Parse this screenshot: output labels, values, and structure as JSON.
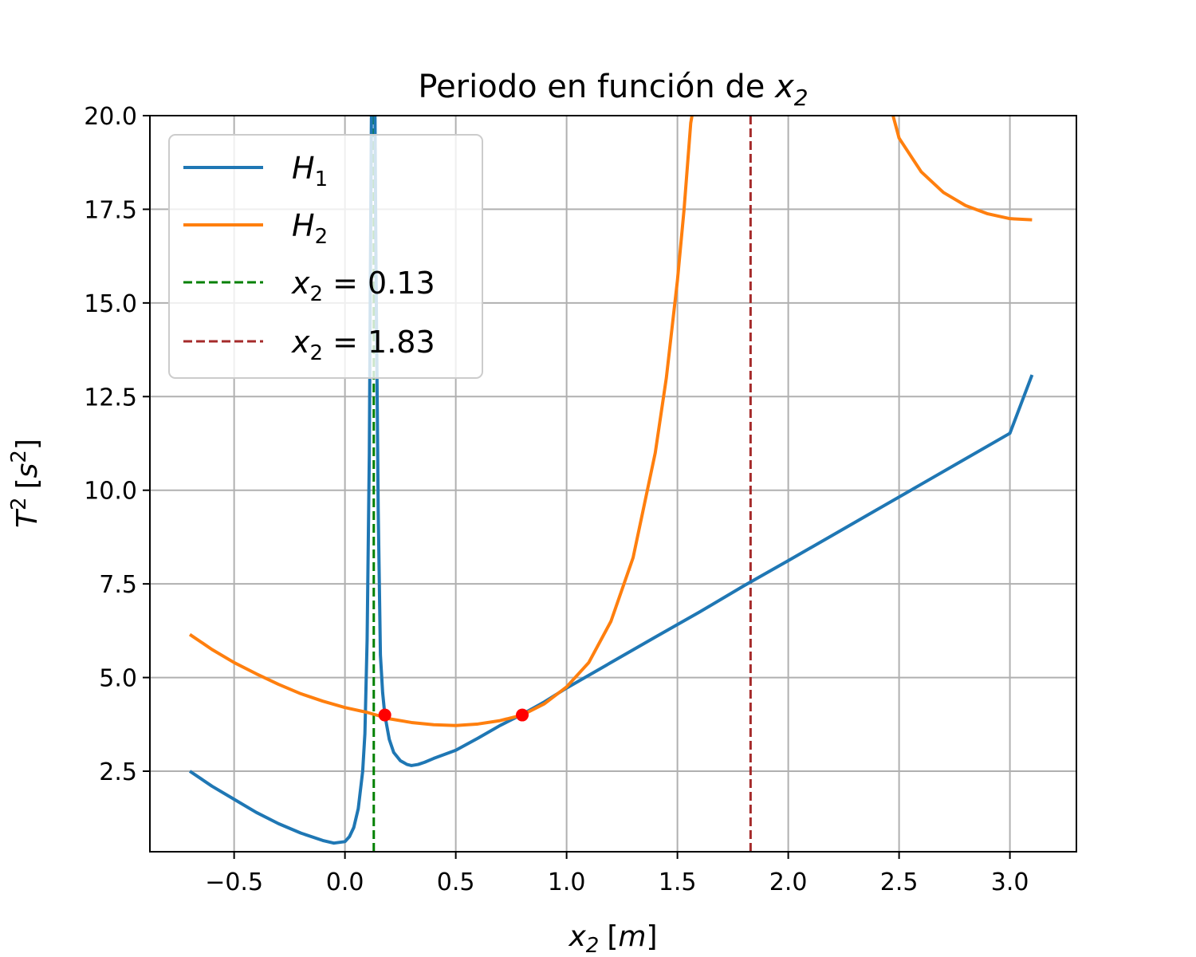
{
  "chart_data": {
    "type": "line",
    "title": {
      "prefix": "Periodo en función de ",
      "var": "x",
      "sub": "2"
    },
    "xlabel": {
      "var": "x",
      "sub": "2",
      "unit_open": "[",
      "unit_var": "m",
      "unit_close": "]"
    },
    "ylabel": {
      "var": "T",
      "sup": "2",
      "unit_open": "[",
      "unit_var": "s",
      "unit_sup": "2",
      "unit_close": "]"
    },
    "xlim": [
      -0.88,
      3.3
    ],
    "ylim": [
      0.35,
      20.0
    ],
    "xticks": [
      -0.5,
      0.0,
      0.5,
      1.0,
      1.5,
      2.0,
      2.5,
      3.0
    ],
    "xtick_labels": [
      "−0.5",
      "0.0",
      "0.5",
      "1.0",
      "1.5",
      "2.0",
      "2.5",
      "3.0"
    ],
    "yticks": [
      2.5,
      5.0,
      7.5,
      10.0,
      12.5,
      15.0,
      17.5,
      20.0
    ],
    "ytick_labels": [
      "2.5",
      "5.0",
      "7.5",
      "10.0",
      "12.5",
      "15.0",
      "17.5",
      "20.0"
    ],
    "grid": true,
    "legend_position": "top-left",
    "series": [
      {
        "name": "H1",
        "label_var": "H",
        "label_sub": "1",
        "color": "#1f77b4",
        "style": "solid",
        "x": [
          -0.7,
          -0.6,
          -0.5,
          -0.4,
          -0.3,
          -0.2,
          -0.1,
          -0.05,
          0.0,
          0.02,
          0.04,
          0.06,
          0.08,
          0.09,
          0.1,
          0.11,
          0.115,
          0.12,
          0.125,
          0.13,
          0.135,
          0.14,
          0.15,
          0.16,
          0.17,
          0.18,
          0.2,
          0.22,
          0.25,
          0.28,
          0.3,
          0.33,
          0.36,
          0.4,
          0.5,
          0.6,
          0.7,
          0.8,
          0.9,
          1.0,
          1.2,
          1.4,
          1.6,
          1.8,
          2.0,
          2.2,
          2.4,
          2.6,
          2.8,
          3.0,
          3.1
        ],
        "y": [
          2.5,
          2.1,
          1.75,
          1.4,
          1.1,
          0.85,
          0.65,
          0.58,
          0.62,
          0.75,
          1.0,
          1.5,
          2.5,
          3.5,
          6.0,
          11.0,
          16.0,
          20.5,
          20.5,
          20.5,
          20.5,
          16.0,
          9.5,
          5.6,
          4.6,
          4.0,
          3.35,
          3.0,
          2.78,
          2.68,
          2.65,
          2.68,
          2.74,
          2.84,
          3.06,
          3.38,
          3.72,
          4.02,
          4.35,
          4.72,
          5.4,
          6.08,
          6.75,
          7.45,
          8.12,
          8.8,
          9.48,
          10.16,
          10.84,
          11.52,
          13.08
        ]
      },
      {
        "name": "H2",
        "label_var": "H",
        "label_sub": "2",
        "color": "#ff7f0e",
        "style": "solid",
        "x": [
          -0.7,
          -0.6,
          -0.5,
          -0.4,
          -0.3,
          -0.2,
          -0.1,
          0.0,
          0.1,
          0.2,
          0.3,
          0.4,
          0.5,
          0.6,
          0.7,
          0.8,
          0.9,
          1.0,
          1.1,
          1.2,
          1.3,
          1.4,
          1.45,
          1.5,
          1.53,
          1.56,
          1.58
        ],
        "y": [
          6.15,
          5.75,
          5.4,
          5.1,
          4.82,
          4.57,
          4.37,
          4.2,
          4.07,
          3.9,
          3.8,
          3.74,
          3.72,
          3.76,
          3.85,
          4.0,
          4.3,
          4.75,
          5.4,
          6.5,
          8.2,
          11.0,
          13.0,
          15.6,
          17.5,
          19.8,
          20.5
        ],
        "x2": [
          2.45,
          2.5,
          2.6,
          2.7,
          2.8,
          2.9,
          3.0,
          3.1
        ],
        "y2": [
          20.5,
          19.4,
          18.5,
          17.95,
          17.6,
          17.38,
          17.25,
          17.22
        ]
      },
      {
        "name": "x2 = 0.13",
        "label_var": "x",
        "label_sub": "2",
        "label_rest": " = 0.13",
        "color": "#008000",
        "style": "dashed",
        "xvalue": 0.13
      },
      {
        "name": "x2 = 1.83",
        "label_var": "x",
        "label_sub": "2",
        "label_rest": " = 1.83",
        "color": "#a52a2a",
        "style": "dashed",
        "xvalue": 1.83
      }
    ],
    "markers": {
      "color": "#ff0000",
      "x": [
        0.18,
        0.8
      ],
      "y": [
        4.0,
        4.0
      ]
    }
  }
}
